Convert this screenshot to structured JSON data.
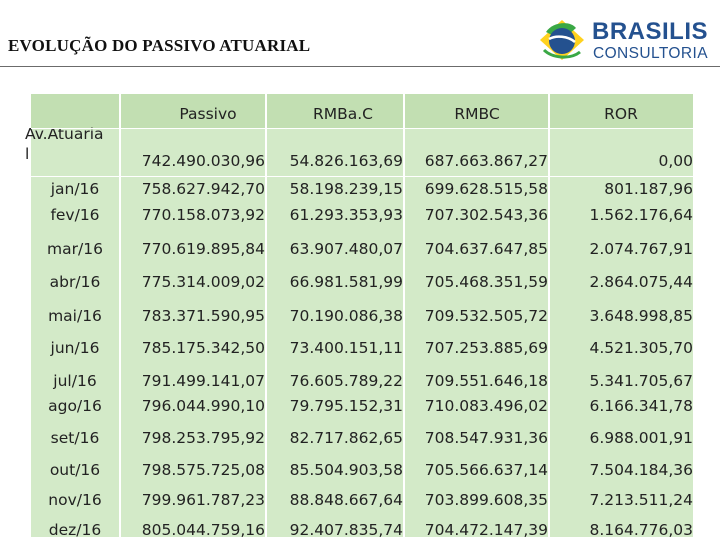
{
  "title": "EVOLUÇÃO DO PASSIVO ATUARIAL",
  "logo": {
    "line1": "BRASILIS",
    "line2": "CONSULTORIA"
  },
  "columns": [
    "",
    "Passivo",
    "RMBa.C",
    "RMBC",
    "ROR"
  ],
  "first_row": {
    "label_line1": "Av.Atuaria",
    "label_line2": "l",
    "passivo": "742.490.030,96",
    "rmbac": "54.826.163,69",
    "rmbc": "687.663.867,27",
    "ror": "0,00"
  },
  "rows": [
    {
      "label": "jan/16",
      "passivo": "758.627.942,70",
      "rmbac": "58.198.239,15",
      "rmbc": "699.628.515,58",
      "ror": "801.187,96"
    },
    {
      "label": "fev/16",
      "passivo": "770.158.073,92",
      "rmbac": "61.293.353,93",
      "rmbc": "707.302.543,36",
      "ror": "1.562.176,64"
    },
    {
      "label": "mar/16",
      "passivo": "770.619.895,84",
      "rmbac": "63.907.480,07",
      "rmbc": "704.637.647,85",
      "ror": "2.074.767,91"
    },
    {
      "label": "abr/16",
      "passivo": "775.314.009,02",
      "rmbac": "66.981.581,99",
      "rmbc": "705.468.351,59",
      "ror": "2.864.075,44"
    },
    {
      "label": "mai/16",
      "passivo": "783.371.590,95",
      "rmbac": "70.190.086,38",
      "rmbc": "709.532.505,72",
      "ror": "3.648.998,85"
    },
    {
      "label": "jun/16",
      "passivo": "785.175.342,50",
      "rmbac": "73.400.151,11",
      "rmbc": "707.253.885,69",
      "ror": "4.521.305,70"
    },
    {
      "label": "jul/16",
      "passivo": "791.499.141,07",
      "rmbac": "76.605.789,22",
      "rmbc": "709.551.646,18",
      "ror": "5.341.705,67"
    },
    {
      "label": "ago/16",
      "passivo": "796.044.990,10",
      "rmbac": "79.795.152,31",
      "rmbc": "710.083.496,02",
      "ror": "6.166.341,78"
    },
    {
      "label": "set/16",
      "passivo": "798.253.795,92",
      "rmbac": "82.717.862,65",
      "rmbc": "708.547.931,36",
      "ror": "6.988.001,91"
    },
    {
      "label": "out/16",
      "passivo": "798.575.725,08",
      "rmbac": "85.504.903,58",
      "rmbc": "705.566.637,14",
      "ror": "7.504.184,36"
    },
    {
      "label": "nov/16",
      "passivo": "799.961.787,23",
      "rmbac": "88.848.667,64",
      "rmbc": "703.899.608,35",
      "ror": "7.213.511,24"
    },
    {
      "label": "dez/16",
      "passivo": "805.044.759,16",
      "rmbac": "92.407.835,74",
      "rmbc": "704.472.147,39",
      "ror": "8.164.776,03"
    }
  ],
  "colors": {
    "header": "#c2dfb2",
    "body": "#d3eac8",
    "brand": "#24518f"
  }
}
